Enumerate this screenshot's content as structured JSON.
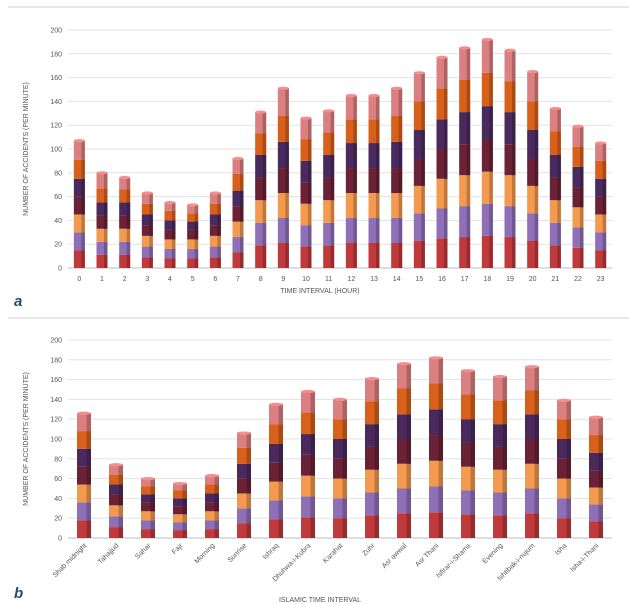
{
  "palette": [
    "#c0393b",
    "#8e6fb8",
    "#f39a4e",
    "#6b2236",
    "#4a2a5e",
    "#d8601b",
    "#dc7f80"
  ],
  "chart_data": [
    {
      "type": "bar",
      "stacked": true,
      "panel_label": "a",
      "xlabel": "TIME INTERVAL (HOUR)",
      "ylabel": "NUMBER OF ACCIDENTS (PER MINUTE)",
      "ylim": [
        0,
        200
      ],
      "yticks": [
        0,
        20,
        40,
        60,
        80,
        100,
        120,
        140,
        160,
        180,
        200
      ],
      "grid": true,
      "legend": "none",
      "categories": [
        "0",
        "1",
        "2",
        "3",
        "4",
        "5",
        "6",
        "7",
        "8",
        "9",
        "10",
        "11",
        "12",
        "13",
        "14",
        "15",
        "16",
        "17",
        "18",
        "19",
        "20",
        "21",
        "22",
        "23"
      ],
      "totals": [
        107,
        80,
        76,
        63,
        55,
        53,
        63,
        92,
        131,
        151,
        126,
        132,
        145,
        145,
        151,
        164,
        177,
        185,
        192,
        183,
        165,
        134,
        119,
        105
      ],
      "series": [
        {
          "values": [
            15,
            11,
            11,
            9,
            8,
            8,
            9,
            13,
            19,
            21,
            18,
            19,
            21,
            21,
            21,
            23,
            25,
            26,
            27,
            26,
            23,
            19,
            17,
            15
          ]
        },
        {
          "values": [
            15,
            11,
            11,
            9,
            8,
            8,
            9,
            13,
            19,
            21,
            18,
            19,
            21,
            21,
            21,
            23,
            25,
            26,
            27,
            26,
            23,
            19,
            17,
            15
          ]
        },
        {
          "values": [
            15,
            11,
            11,
            9,
            8,
            8,
            9,
            13,
            19,
            21,
            18,
            19,
            21,
            21,
            21,
            23,
            25,
            26,
            27,
            26,
            23,
            19,
            17,
            15
          ]
        },
        {
          "values": [
            15,
            11,
            11,
            9,
            8,
            8,
            9,
            13,
            19,
            21,
            18,
            19,
            21,
            21,
            21,
            23,
            25,
            26,
            27,
            26,
            23,
            19,
            17,
            15
          ]
        },
        {
          "values": [
            15,
            11,
            11,
            9,
            8,
            7,
            9,
            13,
            19,
            22,
            18,
            19,
            21,
            21,
            22,
            24,
            25,
            27,
            28,
            27,
            24,
            19,
            17,
            15
          ]
        },
        {
          "values": [
            16,
            12,
            11,
            9,
            8,
            7,
            9,
            14,
            18,
            22,
            18,
            19,
            20,
            20,
            22,
            24,
            26,
            27,
            28,
            26,
            24,
            20,
            17,
            15
          ]
        },
        {
          "values": [
            16,
            13,
            10,
            9,
            7,
            7,
            9,
            13,
            18,
            23,
            18,
            18,
            20,
            20,
            23,
            24,
            26,
            27,
            28,
            26,
            25,
            19,
            17,
            15
          ]
        }
      ]
    },
    {
      "type": "bar",
      "stacked": true,
      "panel_label": "b",
      "xlabel": "ISLAMIC TIME INTERVAL",
      "ylabel": "NUMBER OF ACCIDENTS (PER MINUTE)",
      "ylim": [
        0,
        200
      ],
      "yticks": [
        0,
        20,
        40,
        60,
        80,
        100,
        120,
        140,
        160,
        180,
        200
      ],
      "grid": true,
      "legend": "none",
      "categories": [
        "Shab midnight",
        "Tahajjud",
        "Sahar",
        "Fajr",
        "Morning",
        "Sunrise",
        "Ishraq",
        "Dhuhwa-i-Kubra",
        "Karahat",
        "Zuhr",
        "Asr awwal",
        "Asr Thani",
        "Isfirar-i-Shams",
        "Evening",
        "Ishtibak-i-nujum",
        "Isha",
        "Isha-i-Thani"
      ],
      "totals": [
        126,
        74,
        60,
        55,
        63,
        106,
        135,
        148,
        140,
        161,
        176,
        182,
        169,
        163,
        173,
        139,
        122
      ],
      "series": [
        {
          "values": [
            18,
            11,
            9,
            8,
            9,
            15,
            19,
            21,
            20,
            23,
            25,
            26,
            24,
            23,
            25,
            20,
            17
          ]
        },
        {
          "values": [
            18,
            11,
            9,
            8,
            9,
            15,
            19,
            21,
            20,
            23,
            25,
            26,
            24,
            23,
            25,
            20,
            17
          ]
        },
        {
          "values": [
            18,
            11,
            9,
            8,
            9,
            15,
            19,
            21,
            20,
            23,
            25,
            26,
            24,
            23,
            25,
            20,
            17
          ]
        },
        {
          "values": [
            18,
            11,
            9,
            8,
            9,
            15,
            19,
            21,
            20,
            23,
            25,
            26,
            24,
            23,
            25,
            20,
            17
          ]
        },
        {
          "values": [
            18,
            10,
            8,
            8,
            9,
            15,
            19,
            21,
            20,
            23,
            25,
            26,
            24,
            23,
            25,
            20,
            18
          ]
        },
        {
          "values": [
            18,
            10,
            8,
            8,
            9,
            16,
            20,
            22,
            20,
            23,
            26,
            26,
            25,
            24,
            24,
            20,
            18
          ]
        },
        {
          "values": [
            18,
            10,
            8,
            7,
            9,
            15,
            20,
            21,
            20,
            23,
            25,
            26,
            24,
            24,
            24,
            19,
            18
          ]
        }
      ]
    }
  ]
}
